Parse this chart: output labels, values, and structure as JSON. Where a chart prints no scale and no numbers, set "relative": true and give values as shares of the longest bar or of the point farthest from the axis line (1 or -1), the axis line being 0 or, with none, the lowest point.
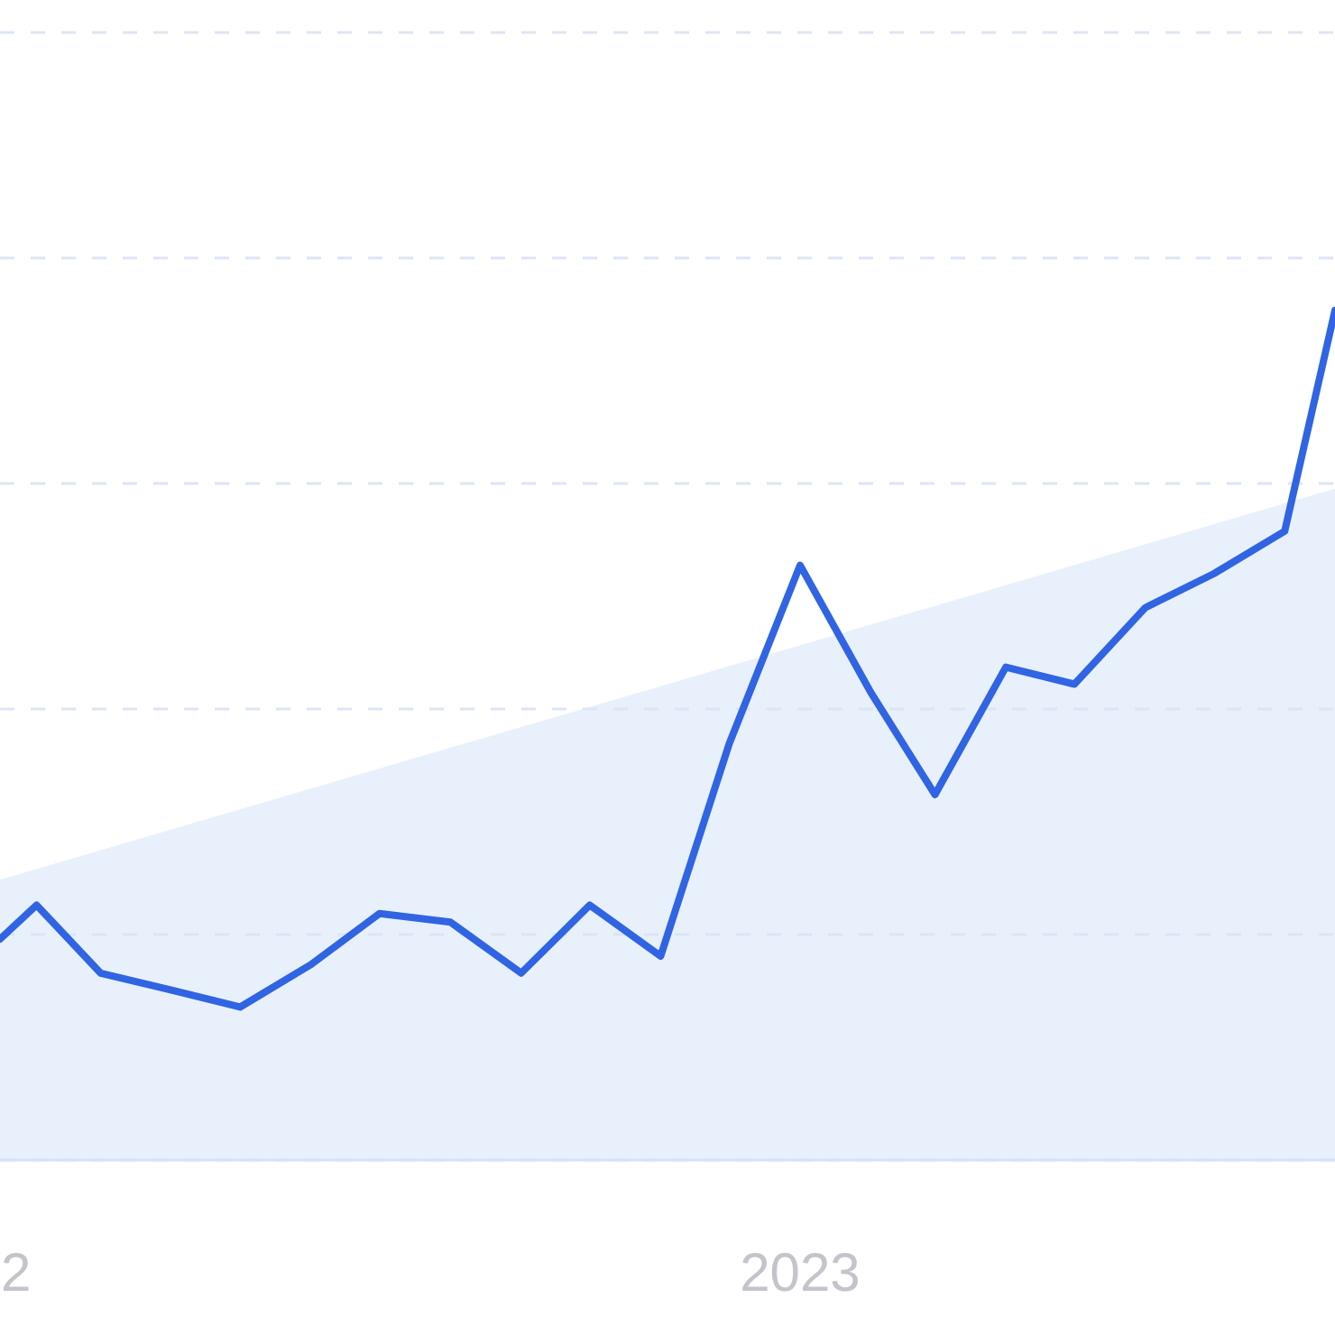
{
  "chart_data": {
    "type": "line",
    "relative": true,
    "x": [
      "2022-01-16",
      "2022-02",
      "2022-03",
      "2022-04",
      "2022-05",
      "2022-06",
      "2022-07",
      "2022-08",
      "2022-09",
      "2022-10",
      "2022-11",
      "2022-12",
      "2023-01",
      "2023-02",
      "2023-03",
      "2023-04",
      "2023-05",
      "2023-06",
      "2023-07",
      "2023-08",
      "2023-08-23"
    ],
    "series": [
      {
        "type": "area",
        "color": "#e8f0fc",
        "x": [
          "2022-01-16",
          "2023-08-23"
        ],
        "values": [
          0.33,
          0.79
        ]
      },
      {
        "color": "#3064e3",
        "values": [
          0.26,
          0.3,
          0.22,
          0.2,
          0.18,
          0.23,
          0.29,
          0.28,
          0.22,
          0.3,
          0.24,
          0.49,
          0.7,
          0.55,
          0.43,
          0.58,
          0.56,
          0.65,
          0.69,
          0.74,
          1
        ]
      }
    ],
    "xlim": [
      "2022-01-16",
      "2023-08-23"
    ],
    "xticks": [
      {
        "value": "2022-01-23",
        "label": "2"
      },
      {
        "value": "2023-01",
        "label": "2023"
      }
    ],
    "grid": "y"
  }
}
